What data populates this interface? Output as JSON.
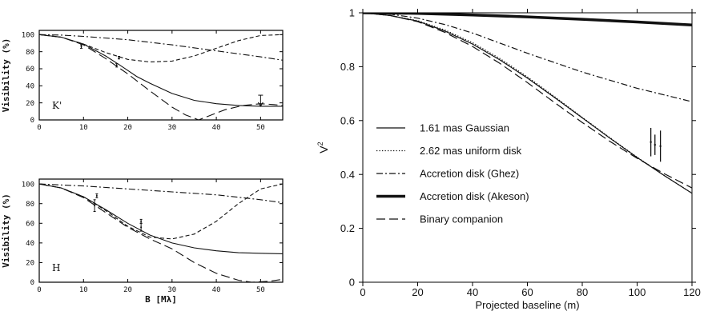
{
  "chart_data": [
    {
      "type": "line",
      "panel_label": "K'",
      "xlabel": "",
      "ylabel": "Visibility (%)",
      "xlim": [
        0,
        55
      ],
      "ylim": [
        0,
        105
      ],
      "xticks": [
        0,
        10,
        20,
        30,
        40,
        50
      ],
      "yticks": [
        0,
        20,
        40,
        60,
        80,
        100
      ],
      "series": [
        {
          "style": "solid",
          "x": [
            0,
            5,
            10,
            15,
            18,
            20,
            22,
            25,
            30,
            35,
            40,
            45,
            50,
            55
          ],
          "y": [
            100,
            97,
            89,
            75,
            65,
            58,
            51,
            43,
            31,
            23,
            19,
            17,
            16,
            16
          ]
        },
        {
          "style": "long-dash",
          "x": [
            0,
            5,
            10,
            15,
            20,
            25,
            30,
            33,
            36,
            38,
            42,
            46,
            50,
            53,
            55
          ],
          "y": [
            100,
            97,
            88,
            72,
            54,
            34,
            15,
            6,
            0,
            4,
            12,
            17,
            19,
            18,
            17
          ]
        },
        {
          "style": "dash",
          "x": [
            0,
            5,
            10,
            15,
            20,
            25,
            30,
            35,
            40,
            45,
            50,
            55
          ],
          "y": [
            100,
            97,
            89,
            79,
            71,
            68,
            69,
            75,
            84,
            93,
            99,
            100
          ]
        },
        {
          "style": "dash-dot",
          "x": [
            0,
            5,
            10,
            20,
            30,
            40,
            50,
            55
          ],
          "y": [
            100,
            99.5,
            98,
            94,
            88,
            81,
            74,
            70
          ]
        }
      ],
      "points": [
        {
          "x": 9.5,
          "y": 86,
          "err": 2
        },
        {
          "x": 17.5,
          "y": 64,
          "err": 2
        },
        {
          "x": 18,
          "y": 73,
          "err": 1.5
        },
        {
          "x": 50,
          "y": 16,
          "err": 0,
          "upper_limit": 29
        }
      ]
    },
    {
      "type": "line",
      "panel_label": "H",
      "xlabel": "B [Mλ]",
      "ylabel": "Visibility (%)",
      "xlim": [
        0,
        55
      ],
      "ylim": [
        0,
        105
      ],
      "xticks": [
        0,
        10,
        20,
        30,
        40,
        50
      ],
      "yticks": [
        0,
        20,
        40,
        60,
        80,
        100
      ],
      "series": [
        {
          "style": "solid",
          "x": [
            0,
            5,
            10,
            15,
            20,
            25,
            30,
            35,
            40,
            45,
            50,
            55
          ],
          "y": [
            100,
            96,
            87,
            74,
            60,
            48,
            40,
            35,
            32,
            30,
            29.5,
            29
          ]
        },
        {
          "style": "long-dash",
          "x": [
            0,
            5,
            10,
            15,
            20,
            25,
            30,
            35,
            40,
            45,
            48,
            52,
            55
          ],
          "y": [
            100,
            96,
            86,
            71,
            56,
            44,
            34,
            20,
            9,
            2,
            0,
            1,
            3
          ]
        },
        {
          "style": "dash",
          "x": [
            0,
            5,
            10,
            15,
            20,
            25,
            30,
            35,
            40,
            45,
            50,
            55
          ],
          "y": [
            100,
            96,
            87,
            73,
            57,
            46,
            44,
            49,
            62,
            80,
            95,
            100
          ]
        },
        {
          "style": "dash-dot",
          "x": [
            0,
            10,
            20,
            30,
            40,
            50,
            55
          ],
          "y": [
            100,
            98,
            95,
            92,
            89,
            84,
            81
          ]
        }
      ],
      "points": [
        {
          "x": 12.5,
          "y": 78,
          "err": 6
        },
        {
          "x": 13,
          "y": 88,
          "err": 2
        },
        {
          "x": 23,
          "y": 56,
          "err": 4
        },
        {
          "x": 23,
          "y": 62,
          "err": 2
        }
      ]
    },
    {
      "type": "line",
      "xlabel": "Projected baseline (m)",
      "ylabel": "V",
      "ylabel_sup": "2",
      "xlim": [
        0,
        120
      ],
      "ylim": [
        0,
        1
      ],
      "xticks": [
        0,
        20,
        40,
        60,
        80,
        100,
        120
      ],
      "yticks": [
        0,
        0.2,
        0.4,
        0.6,
        0.8,
        1
      ],
      "series": [
        {
          "name": "1.61 mas Gaussian",
          "style": "solid",
          "width": 1.2,
          "x": [
            0,
            10,
            20,
            30,
            40,
            50,
            60,
            70,
            80,
            90,
            100,
            110,
            120
          ],
          "y": [
            1,
            0.99,
            0.969,
            0.932,
            0.884,
            0.825,
            0.758,
            0.685,
            0.61,
            0.535,
            0.463,
            0.395,
            0.33
          ]
        },
        {
          "name": "2.62 mas uniform disk",
          "style": "dotted",
          "width": 1.2,
          "x": [
            0,
            10,
            20,
            30,
            40,
            50,
            60,
            70,
            80,
            90,
            100,
            110,
            120
          ],
          "y": [
            1,
            0.99,
            0.971,
            0.936,
            0.889,
            0.83,
            0.762,
            0.688,
            0.612,
            0.537,
            0.464,
            0.395,
            0.331
          ]
        },
        {
          "name": "Accretion disk (Ghez)",
          "style": "dash-dot",
          "width": 1.2,
          "x": [
            0,
            10,
            20,
            30,
            40,
            60,
            80,
            100,
            120
          ],
          "y": [
            1,
            0.995,
            0.98,
            0.956,
            0.925,
            0.85,
            0.78,
            0.72,
            0.67
          ]
        },
        {
          "name": "Accretion disk (Akeson)",
          "style": "thick",
          "width": 3.5,
          "x": [
            0,
            20,
            40,
            60,
            80,
            100,
            120
          ],
          "y": [
            1,
            0.998,
            0.992,
            0.985,
            0.976,
            0.966,
            0.955
          ]
        },
        {
          "name": "Binary companion",
          "style": "long-dash",
          "width": 1.2,
          "x": [
            0,
            10,
            20,
            30,
            40,
            50,
            60,
            70,
            80,
            90,
            100,
            110,
            120
          ],
          "y": [
            1,
            0.99,
            0.967,
            0.927,
            0.875,
            0.812,
            0.741,
            0.666,
            0.593,
            0.523,
            0.46,
            0.402,
            0.35
          ]
        }
      ],
      "points": [
        {
          "x": 105,
          "y": 0.52,
          "err": 0.035
        },
        {
          "x": 106.5,
          "y": 0.51,
          "err": 0.02
        },
        {
          "x": 108.5,
          "y": 0.505,
          "err": 0.04
        }
      ],
      "legend_position": "left-bottom"
    }
  ]
}
